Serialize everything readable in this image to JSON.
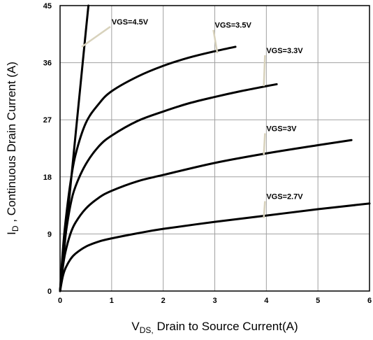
{
  "chart_data": {
    "type": "line",
    "title": "",
    "xlabel": {
      "main": "V",
      "sub": "DS,",
      "rest": " Drain to Source Current(A)"
    },
    "ylabel": {
      "main": "I",
      "sub": "D",
      "rest": " , Continuous Drain Current (A)"
    },
    "xlim": [
      0,
      6
    ],
    "ylim": [
      0,
      45
    ],
    "x_ticks": [
      "0",
      "1",
      "2",
      "3",
      "4",
      "5",
      "6"
    ],
    "y_ticks": [
      "0",
      "9",
      "18",
      "27",
      "36",
      "45"
    ],
    "grid": true,
    "series": [
      {
        "name": "VGS=4.5V",
        "x": [
          0,
          0.1,
          0.2,
          0.3,
          0.4,
          0.5,
          0.55
        ],
        "y": [
          0,
          8.2,
          16.4,
          24.6,
          32.8,
          41.0,
          45.0
        ]
      },
      {
        "name": "VGS=3.5V",
        "x": [
          0,
          0.05,
          0.1,
          0.2,
          0.3,
          0.5,
          0.75,
          1.0,
          1.5,
          2.0,
          2.5,
          3.0,
          3.4
        ],
        "y": [
          0,
          6.0,
          10.5,
          17.0,
          21.5,
          26.5,
          29.5,
          31.5,
          33.8,
          35.5,
          36.8,
          37.8,
          38.5
        ]
      },
      {
        "name": "VGS=3.3V",
        "x": [
          0,
          0.05,
          0.1,
          0.2,
          0.3,
          0.5,
          0.75,
          1.0,
          1.5,
          2.0,
          2.5,
          3.0,
          3.5,
          4.0,
          4.2
        ],
        "y": [
          0,
          5.0,
          8.5,
          13.5,
          16.5,
          20.0,
          22.8,
          24.5,
          26.8,
          28.3,
          29.6,
          30.6,
          31.5,
          32.3,
          32.6
        ]
      },
      {
        "name": "VGS=3V",
        "x": [
          0,
          0.05,
          0.1,
          0.2,
          0.3,
          0.5,
          0.75,
          1.0,
          1.5,
          2.0,
          3.0,
          4.0,
          5.0,
          5.65
        ],
        "y": [
          0,
          3.5,
          6.0,
          9.0,
          10.8,
          13.0,
          14.7,
          15.8,
          17.3,
          18.3,
          20.2,
          21.7,
          23.0,
          23.8
        ]
      },
      {
        "name": "VGS=2.7V",
        "x": [
          0,
          0.05,
          0.1,
          0.2,
          0.3,
          0.5,
          0.75,
          1.0,
          1.5,
          2.0,
          3.0,
          4.0,
          5.0,
          6.0
        ],
        "y": [
          0,
          2.2,
          3.5,
          5.0,
          5.9,
          7.0,
          7.8,
          8.3,
          9.1,
          9.8,
          10.9,
          11.9,
          12.9,
          13.8
        ]
      }
    ],
    "annotations": [
      {
        "text": "VGS=4.5V",
        "x": 1.0,
        "y": 42.0,
        "point": [
          0.42,
          38.5
        ]
      },
      {
        "text": "VGS=3.5V",
        "x": 3.0,
        "y": 41.5,
        "point": [
          3.05,
          37.5
        ]
      },
      {
        "text": "VGS=3.3V",
        "x": 4.0,
        "y": 37.5,
        "point": [
          3.95,
          32.3
        ]
      },
      {
        "text": "VGS=3V",
        "x": 4.0,
        "y": 25.2,
        "point": [
          3.95,
          21.5
        ]
      },
      {
        "text": "VGS=2.7V",
        "x": 4.0,
        "y": 14.5,
        "point": [
          3.95,
          11.5
        ]
      }
    ]
  }
}
